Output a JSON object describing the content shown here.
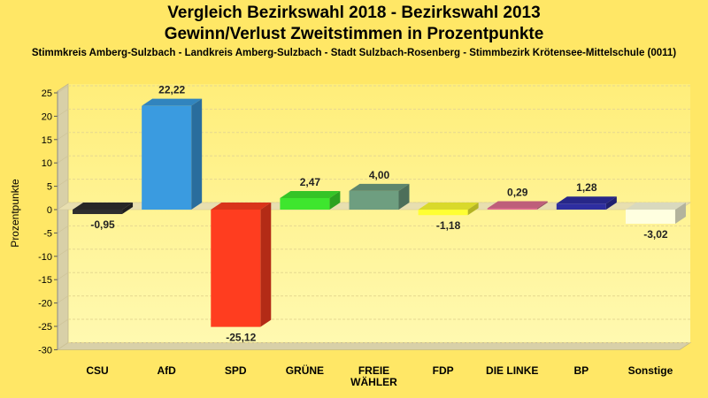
{
  "title_line1": "Vergleich Bezirkswahl 2018 - Bezirkswahl 2013",
  "title_line2": "Gewinn/Verlust Zweitstimmen in Prozentpunkte",
  "subtitle": "Stimmkreis Amberg-Sulzbach - Landkreis Amberg-Sulzbach - Stadt Sulzbach-Rosenberg - Stimmbezirk Krötensee-Mittelschule (0011)",
  "chart_data": {
    "type": "bar",
    "title": "Vergleich Bezirkswahl 2018 - Bezirkswahl 2013 Gewinn/Verlust Zweitstimmen in Prozentpunkte",
    "subtitle": "Stimmkreis Amberg-Sulzbach - Landkreis Amberg-Sulzbach - Stadt Sulzbach-Rosenberg - Stimmbezirk Krötensee-Mittelschule (0011)",
    "xlabel": "",
    "ylabel": "Prozentpunkte",
    "ylim": [
      -30,
      25
    ],
    "yticks": [
      25,
      20,
      15,
      10,
      5,
      0,
      -5,
      -10,
      -15,
      -20,
      -25,
      -30
    ],
    "grid": true,
    "categories": [
      [
        "CSU"
      ],
      [
        "AfD"
      ],
      [
        "SPD"
      ],
      [
        "GRÜNE"
      ],
      [
        "FREIE",
        "WÄHLER"
      ],
      [
        "FDP"
      ],
      [
        "DIE LINKE"
      ],
      [
        "BP"
      ],
      [
        "Sonstige"
      ]
    ],
    "values": [
      -0.95,
      22.22,
      -25.12,
      2.47,
      4.0,
      -1.18,
      0.29,
      1.28,
      -3.02
    ],
    "value_labels": [
      "-0,95",
      "22,22",
      "-25,12",
      "2,47",
      "4,00",
      "-1,18",
      "0,29",
      "1,28",
      "-3,02"
    ],
    "colors": [
      "#2E2E2E",
      "#3A9BE0",
      "#FF3D1F",
      "#3EE62E",
      "#6E9E80",
      "#FFFF33",
      "#E06E90",
      "#2E2EA0",
      "#FFFFE0"
    ]
  }
}
